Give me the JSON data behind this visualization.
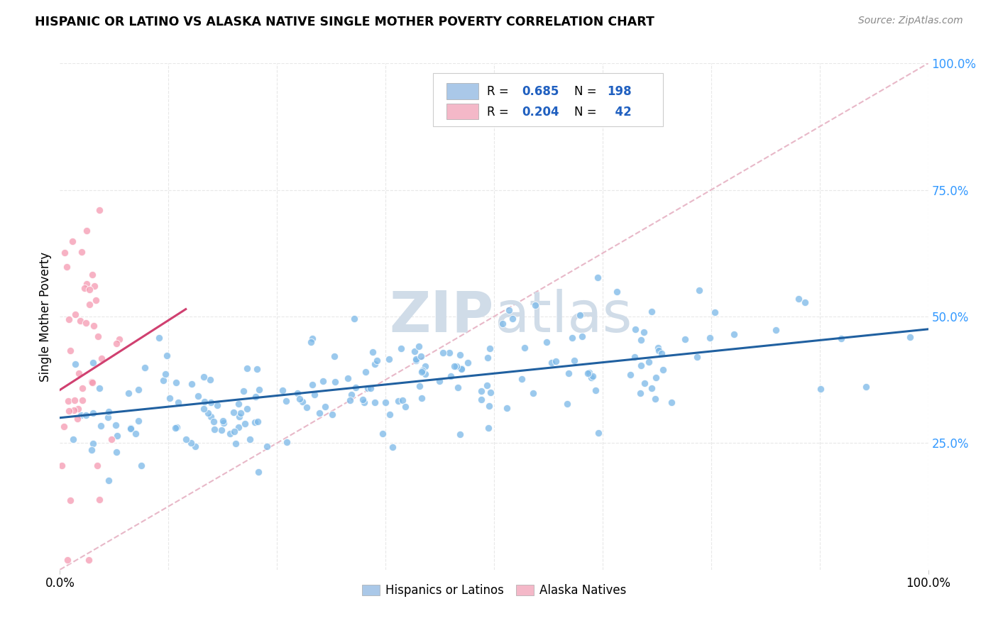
{
  "title": "HISPANIC OR LATINO VS ALASKA NATIVE SINGLE MOTHER POVERTY CORRELATION CHART",
  "source": "Source: ZipAtlas.com",
  "ylabel": "Single Mother Poverty",
  "xlim": [
    0,
    1
  ],
  "ylim": [
    0,
    1
  ],
  "blue_scatter_color": "#7ab8e8",
  "blue_line_color": "#2060a0",
  "pink_scatter_color": "#f599b0",
  "pink_line_color": "#d04070",
  "dashed_line_color": "#e8b8c8",
  "legend_blue_fill": "#aac8e8",
  "legend_pink_fill": "#f4b8c8",
  "legend_text_color": "#2060c0",
  "R_blue": 0.685,
  "N_blue": 198,
  "R_pink": 0.204,
  "N_pink": 42,
  "blue_intercept": 0.3,
  "blue_slope": 0.175,
  "pink_intercept": 0.355,
  "pink_slope": 1.1,
  "pink_line_end_x": 0.145,
  "watermark_zip": "ZIP",
  "watermark_atlas": "atlas",
  "watermark_color": "#d0dce8",
  "background_color": "#ffffff",
  "grid_color": "#e8e8e8",
  "right_tick_color": "#3399ff",
  "seed": 7
}
